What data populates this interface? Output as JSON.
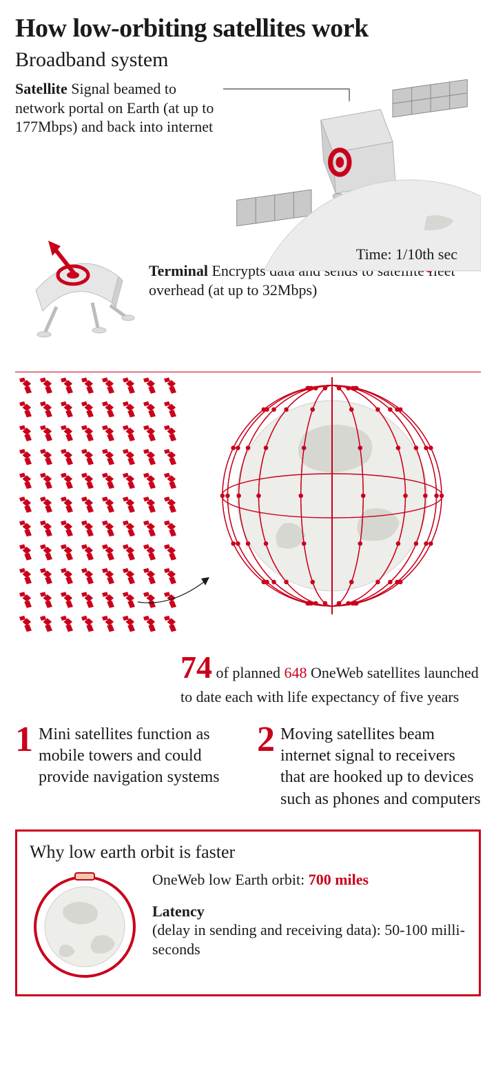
{
  "colors": {
    "accent": "#c9001b",
    "text": "#1a1a1a",
    "globe_fill": "#e8e8e6",
    "globe_land": "#d4d4d0",
    "sat_body": "#dcdcdc",
    "sat_dark": "#bfbfbf",
    "bg": "#ffffff"
  },
  "headline": "How low-orbiting satellites work",
  "subhead": "Broadband system",
  "satellite": {
    "lead": "Satellite",
    "text": "Signal beamed to network portal on Earth (at up to 177Mbps) and back into internet",
    "time_label": "Time: 1/10th sec"
  },
  "terminal": {
    "lead": "Terminal",
    "text": "Encrypts data and sends to satellite fleet overhead (at up to 32Mbps)"
  },
  "swarm": {
    "rows": 11,
    "cols": 8,
    "glyph_color": "#c9001b"
  },
  "stat": {
    "big": "74",
    "rest_a": "of planned ",
    "red": "648",
    "rest_b": " OneWeb satellites launched to date each with life expectancy of five years"
  },
  "facts": [
    {
      "n": "1",
      "text": "Mini satellites function as mobile towers and could provide navigation systems"
    },
    {
      "n": "2",
      "text": "Moving satellites beam internet signal to receivers that are hooked up to devices such as phones and computers"
    }
  ],
  "box": {
    "title": "Why low earth orbit is faster",
    "orbit_a": "OneWeb low Earth orbit: ",
    "orbit_b": "700 miles",
    "latency_lead": "Latency",
    "latency_rest": "(delay in sending and receiving data): 50-100 milli-seconds"
  }
}
